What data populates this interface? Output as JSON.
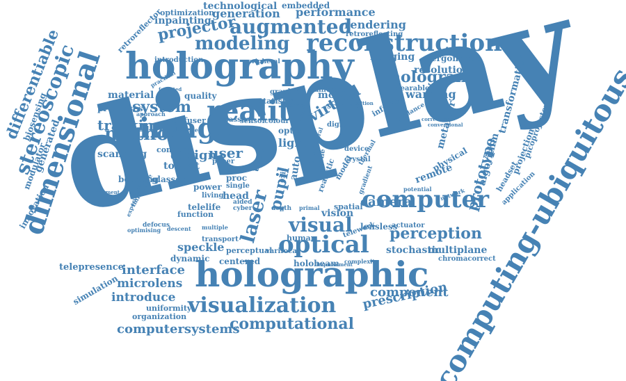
{
  "colors": {
    "word": "#4682b4",
    "background": "#ffffff"
  },
  "words": {
    "display": "display",
    "holography": "holography",
    "holographic": "holographic",
    "computing_ubiquitous": "computing-ubiquitous",
    "reconstruction": "reconstruction",
    "dimensional": "dimensional",
    "reality": "reality",
    "image": "image",
    "computer": "computer",
    "visualization": "visualization",
    "optical": "optical",
    "augmented": "augmented",
    "modeling": "modeling",
    "hologram": "hologram",
    "method": "method",
    "system": "system",
    "tracking": "tracking",
    "design": "design",
    "user": "user",
    "perception": "perception",
    "visual": "visual",
    "computational": "computational",
    "prescription": "prescription",
    "component": "component",
    "interface": "interface",
    "microlens": "microlens",
    "introduce": "introduce",
    "computersystems": "computersystems",
    "stereoscopic": "stereoscopic",
    "differentiable": "differentiable",
    "biosensing": "biosensing",
    "generated": "generated",
    "modulator": "modulator",
    "innovation": "innovation",
    "telepresence": "telepresence",
    "simulation": "simulation",
    "speckle": "speckle",
    "dynamic": "dynamic",
    "holobeam": "holobeam",
    "stochastic": "stochastic",
    "multiplane": "multiplane",
    "camera": "camera",
    "lensless": "lensless",
    "vision": "vision",
    "human": "human",
    "laser": "laser",
    "prototype": "prototype",
    "algorithm": "algorithm",
    "transformation": "transformation",
    "projection": "projection",
    "picoprojector": "picoprojector",
    "headset": "headset",
    "application": "application",
    "remote": "remote",
    "physical": "physical",
    "imaging": "imaging",
    "ergonomic": "ergonomic",
    "resolution": "resolution",
    "warping": "warping",
    "wearable": "wearable",
    "mobile": "mobile",
    "science": "science",
    "virtual": "virtual",
    "material": "material",
    "processes": "processes",
    "quality": "quality",
    "projector": "projector",
    "inpainting": "inpainting",
    "technological": "technological",
    "generation": "generation",
    "performance": "performance",
    "embedded": "embedded",
    "optimization": "optimization",
    "rendering": "rendering",
    "retroreflector": "retroreflector",
    "retroreflecting": "retroreflecting",
    "introduction": "introduction",
    "peripheral": "peripheral",
    "scanning": "scanning",
    "toolkit": "toolkit",
    "beaming": "beaming",
    "glasses": "glasses",
    "concern": "concern",
    "diffuser": "diffuser",
    "light": "light",
    "optic": "optic",
    "colour": "colour",
    "sensor": "sensor",
    "passive": "passive",
    "statistic": "statistic",
    "graphic": "graphic",
    "different": "different",
    "time": "time",
    "pupil": "pupil",
    "auto": "auto",
    "proc": "proc",
    "trade": "trade",
    "single": "single",
    "head": "head",
    "power": "power",
    "living": "living",
    "telelife": "telelife",
    "function": "function",
    "paper": "paper",
    "aided": "aided",
    "cyber": "cyber",
    "depth": "depth",
    "spatial": "spatial",
    "model": "model",
    "device": "device",
    "digital": "digital",
    "crystal": "crystal",
    "metamer": "metamer",
    "infrared": "infrared",
    "guidance": "guidance",
    "varifocal": "varifocal",
    "perceptual": "perceptual",
    "centered": "centered",
    "transport": "transport",
    "uniformity": "uniformity",
    "organization": "organization",
    "telework": "telework",
    "actuator": "actuator",
    "chromacorrect": "chromacorrect",
    "complexity": "complexity",
    "defocus": "defocus",
    "optimising": "optimising",
    "immersive": "immersive",
    "experience": "experience",
    "impairment": "impairment",
    "multiple": "multiple",
    "realistic": "realistic",
    "scene": "scene",
    "real": "real",
    "exit": "exit",
    "gradient": "gradient",
    "network": "network",
    "potential": "potential",
    "improvement": "improvement",
    "accuracy": "accuracy",
    "position": "position",
    "correction": "correction",
    "conventional": "conventional",
    "thermal": "thermal",
    "primal": "primal",
    "distance": "distance",
    "approach": "approach",
    "practical": "practical",
    "foveated": "foveated",
    "central": "central",
    "descent": "descent"
  }
}
